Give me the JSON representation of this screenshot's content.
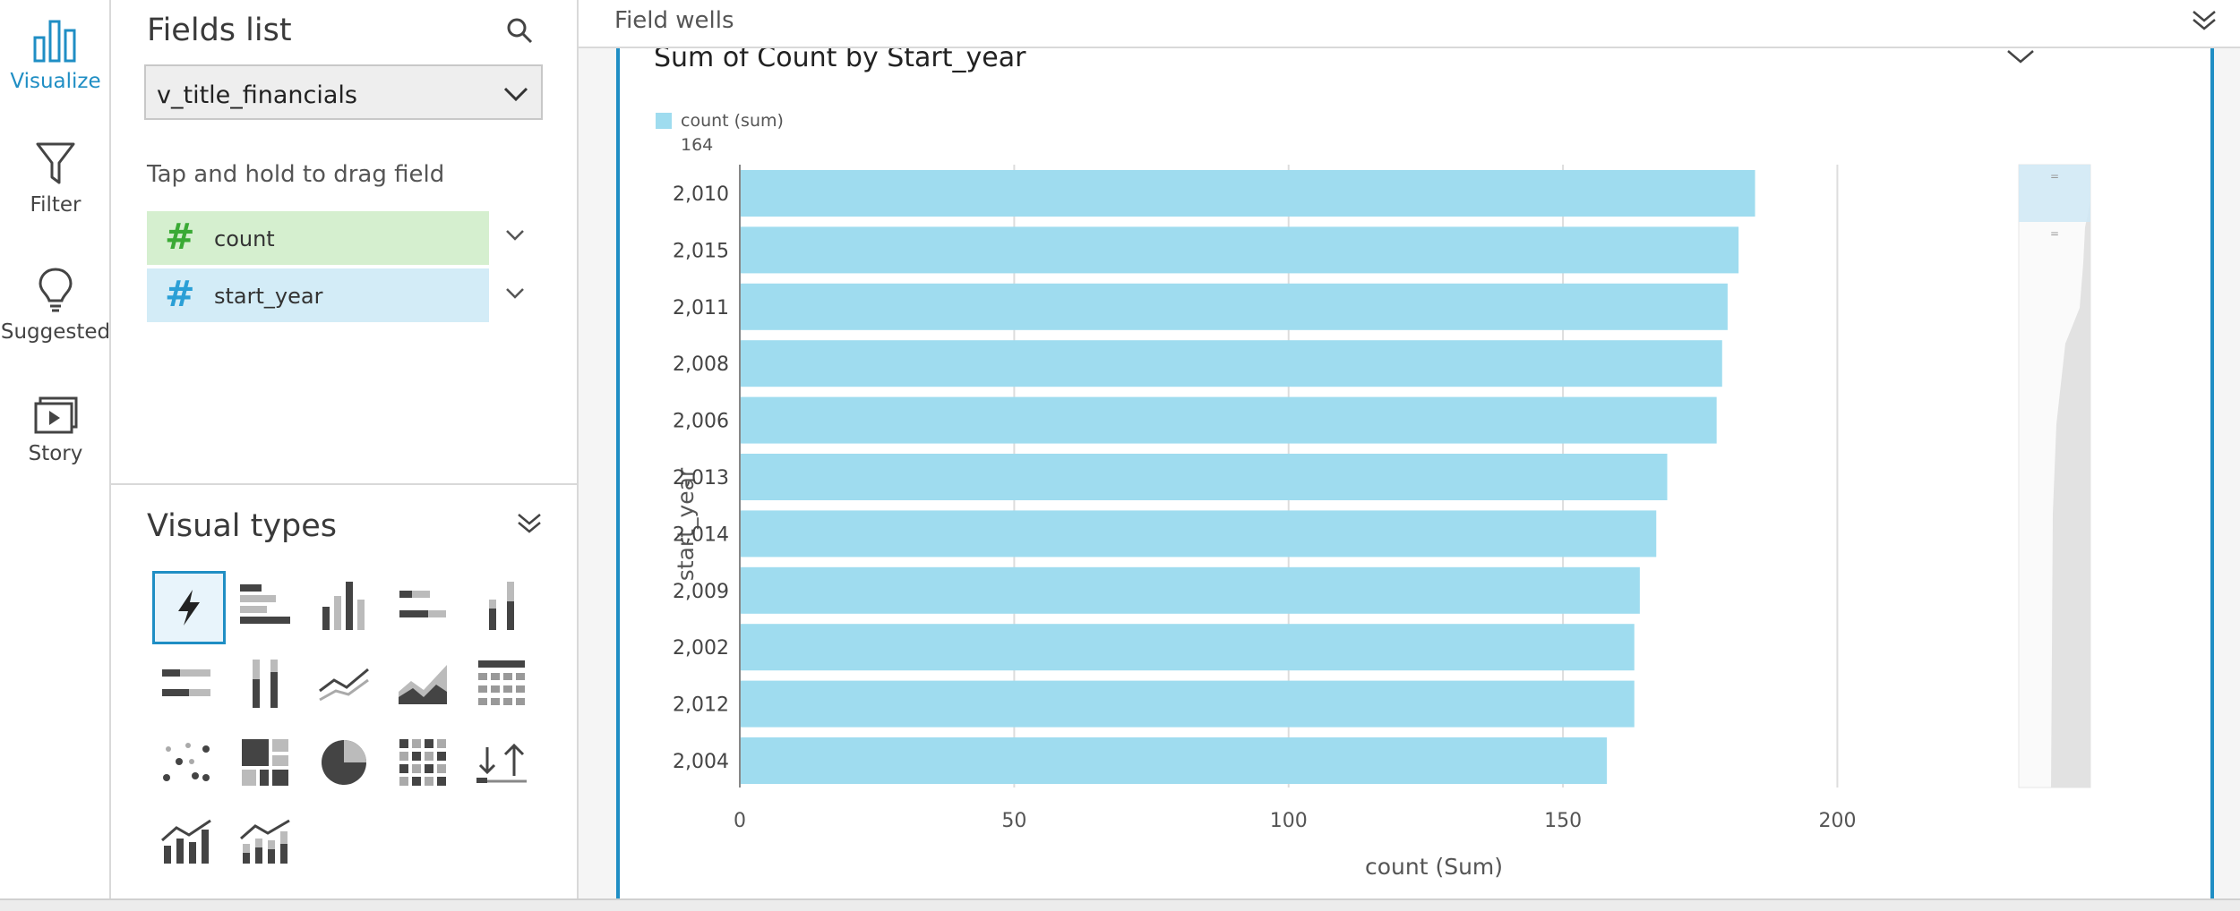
{
  "nav": {
    "items": [
      {
        "label": "Visualize",
        "icon": "bar-chart-icon",
        "active": true
      },
      {
        "label": "Filter",
        "icon": "funnel-icon",
        "active": false
      },
      {
        "label": "Suggested",
        "icon": "lightbulb-icon",
        "active": false
      },
      {
        "label": "Story",
        "icon": "play-slides-icon",
        "active": false
      }
    ]
  },
  "fields_panel": {
    "title": "Fields list",
    "dataset": "v_title_financials",
    "drag_hint": "Tap and hold to drag field",
    "fields": [
      {
        "name": "count",
        "type_icon": "#",
        "selected": true,
        "kind": "measure"
      },
      {
        "name": "start_year",
        "type_icon": "#",
        "selected": true,
        "kind": "dimension"
      }
    ]
  },
  "visual_types": {
    "title": "Visual types",
    "items": [
      "autograph-icon",
      "horizontal-bar-icon",
      "vertical-bar-icon",
      "stacked-horizontal-bar-icon",
      "stacked-vertical-bar-icon",
      "percent-horizontal-bar-icon",
      "percent-vertical-bar-icon",
      "line-chart-icon",
      "area-chart-icon",
      "pivot-table-icon",
      "scatter-plot-icon",
      "tree-map-icon",
      "pie-chart-icon",
      "heat-map-icon",
      "kpi-icon",
      "combo-bar-line-icon",
      "combo-stacked-line-icon"
    ],
    "selected_index": 0
  },
  "field_wells": {
    "label": "Field wells"
  },
  "colors": {
    "accent": "#1f8ec4",
    "bar": "#9fdcef",
    "measure_chip": "#d5efcf",
    "dimension_chip": "#d3ecf7",
    "measure_hash": "#3aaa35",
    "dimension_hash": "#2a9fd6"
  },
  "chart_data": {
    "type": "bar",
    "orientation": "horizontal",
    "title": "Sum of Count by Start_year",
    "legend": {
      "label": "count (sum)",
      "value": "164",
      "position": "top-left"
    },
    "categories": [
      "2,010",
      "2,015",
      "2,011",
      "2,008",
      "2,006",
      "2,013",
      "2,014",
      "2,009",
      "2,002",
      "2,012",
      "2,004"
    ],
    "values": [
      185,
      182,
      180,
      179,
      178,
      169,
      167,
      164,
      163,
      163,
      158
    ],
    "xlabel": "count (Sum)",
    "ylabel": "start_year",
    "xlim": [
      0,
      220
    ],
    "xticks": [
      "0",
      "50",
      "100",
      "150",
      "200"
    ],
    "xtick_values": [
      0,
      50,
      100,
      150,
      200
    ],
    "grid": true
  }
}
